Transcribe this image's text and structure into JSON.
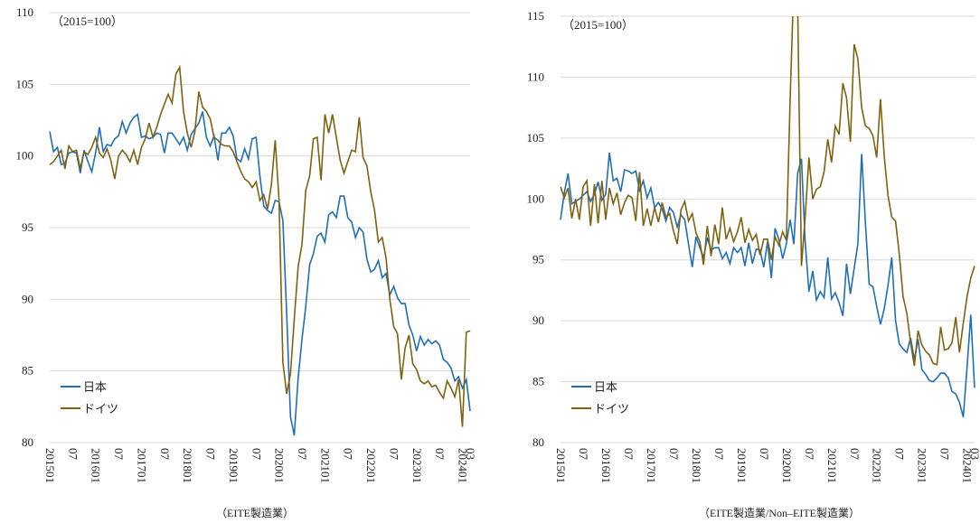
{
  "chart_data": [
    {
      "type": "line",
      "subtitle": "（2015=100）",
      "caption": "（EITE製造業）",
      "categories": [
        "201501",
        null,
        null,
        null,
        null,
        null,
        "07",
        null,
        null,
        null,
        null,
        null,
        "201601",
        null,
        null,
        null,
        null,
        null,
        "07",
        null,
        null,
        null,
        null,
        null,
        "201701",
        null,
        null,
        null,
        null,
        null,
        "07",
        null,
        null,
        null,
        null,
        null,
        "201801",
        null,
        null,
        null,
        null,
        null,
        "07",
        null,
        null,
        null,
        null,
        null,
        "201901",
        null,
        null,
        null,
        null,
        null,
        "07",
        null,
        null,
        null,
        null,
        null,
        "202001",
        null,
        null,
        null,
        null,
        null,
        "07",
        null,
        null,
        null,
        null,
        null,
        "202101",
        null,
        null,
        null,
        null,
        null,
        "07",
        null,
        null,
        null,
        null,
        null,
        "202201",
        null,
        null,
        null,
        null,
        null,
        "07",
        null,
        null,
        null,
        null,
        null,
        "202301",
        null,
        null,
        null,
        null,
        null,
        "07",
        null,
        null,
        null,
        null,
        null,
        "202401",
        null,
        "03"
      ],
      "ylim": [
        80,
        110
      ],
      "yticks": [
        80,
        85,
        90,
        95,
        100,
        105,
        110
      ],
      "grid": true,
      "legend": "lower left",
      "series": [
        {
          "name": "日本",
          "color": "#1f6fb8",
          "values": [
            101.7,
            100.3,
            100.6,
            99.4,
            99.5,
            100.2,
            100.3,
            100.2,
            98.8,
            100.4,
            99.6,
            98.9,
            100.2,
            102,
            100.3,
            100.8,
            100.7,
            101.2,
            101.4,
            102.4,
            101.6,
            102.3,
            102.7,
            102.9,
            101.3,
            101.4,
            101.2,
            101.3,
            101.6,
            101.5,
            100.2,
            101.6,
            101.6,
            101.2,
            100.8,
            101.3,
            100.4,
            101.5,
            101.9,
            102.3,
            103.1,
            101.3,
            100.7,
            101.4,
            99.7,
            101.6,
            101.6,
            102,
            101.4,
            99.8,
            99.6,
            100.5,
            99.8,
            101.2,
            101.3,
            98.6,
            96.5,
            96.2,
            96,
            96.9,
            96.8,
            95.5,
            89,
            81.8,
            80.5,
            84.5,
            87.2,
            89.5,
            92.4,
            93.2,
            94.4,
            94.6,
            94,
            95.9,
            96.1,
            95.7,
            97.2,
            97.2,
            95.7,
            95.4,
            94.3,
            95,
            94.7,
            92.8,
            91.9,
            92.1,
            92.7,
            91.5,
            91.8,
            90.3,
            90.9,
            90.1,
            89.7,
            89.7,
            88.2,
            87.5,
            86.4,
            87.4,
            86.8,
            87.2,
            86.9,
            87.1,
            86.8,
            85.8,
            85.6,
            85.2,
            84.3,
            84.6,
            83.8,
            84.4,
            82.2
          ]
        },
        {
          "name": "ドイツ",
          "color": "#7f6210",
          "values": [
            99.4,
            99.6,
            100,
            100.4,
            99.1,
            100.7,
            100.3,
            100.4,
            99.1,
            100.3,
            100.1,
            100.6,
            101.3,
            100.2,
            99.9,
            100.5,
            99.7,
            98.4,
            100,
            100.4,
            100.1,
            99.6,
            100.4,
            99.4,
            100.6,
            101.2,
            102.3,
            101.3,
            102,
            102.9,
            103.6,
            104.3,
            103.7,
            105.7,
            106.2,
            103.1,
            101.6,
            100.6,
            101.7,
            104.5,
            103.4,
            103.1,
            102.6,
            101.3,
            101.1,
            100.8,
            100.7,
            100.7,
            100.3,
            99.6,
            98.9,
            98.4,
            98.2,
            97.8,
            98.2,
            96.9,
            97.3,
            96.3,
            98,
            101.1,
            97,
            85.6,
            83.4,
            84.8,
            88.6,
            92.3,
            93.8,
            97.6,
            98.6,
            101.2,
            101.3,
            98.3,
            102.9,
            101.6,
            102.9,
            101.3,
            99.7,
            98.8,
            99.6,
            100.4,
            100.3,
            102.7,
            99.9,
            99.3,
            97.5,
            96.2,
            94,
            94.3,
            92.9,
            90,
            88.1,
            87.6,
            84.4,
            86.6,
            87.5,
            85.5,
            85.1,
            84.3,
            84.1,
            84.3,
            83.9,
            84,
            83.5,
            83.1,
            84.3,
            83.8,
            83.2,
            84.4,
            81.1,
            87.7,
            87.8
          ]
        }
      ]
    },
    {
      "type": "line",
      "subtitle": "（2015=100）",
      "caption": "（EITE製造業/Non–EITE製造業）",
      "categories": [
        "201501",
        null,
        null,
        null,
        null,
        null,
        "07",
        null,
        null,
        null,
        null,
        null,
        "201601",
        null,
        null,
        null,
        null,
        null,
        "07",
        null,
        null,
        null,
        null,
        null,
        "201701",
        null,
        null,
        null,
        null,
        null,
        "07",
        null,
        null,
        null,
        null,
        null,
        "201801",
        null,
        null,
        null,
        null,
        null,
        "07",
        null,
        null,
        null,
        null,
        null,
        "201901",
        null,
        null,
        null,
        null,
        null,
        "07",
        null,
        null,
        null,
        null,
        null,
        "202001",
        null,
        null,
        null,
        null,
        null,
        "07",
        null,
        null,
        null,
        null,
        null,
        "202101",
        null,
        null,
        null,
        null,
        null,
        "07",
        null,
        null,
        null,
        null,
        null,
        "202201",
        null,
        null,
        null,
        null,
        null,
        "07",
        null,
        null,
        null,
        null,
        null,
        "202301",
        null,
        null,
        null,
        null,
        null,
        "07",
        null,
        null,
        null,
        null,
        null,
        "202401",
        null,
        "03"
      ],
      "ylim": [
        80,
        115
      ],
      "yticks": [
        80,
        85,
        90,
        95,
        100,
        105,
        110,
        115
      ],
      "grid": true,
      "legend": "lower left",
      "series": [
        {
          "name": "日本",
          "color": "#1f6fb8",
          "values": [
            98.3,
            100.5,
            102.1,
            99.6,
            99.8,
            100,
            100.3,
            100.6,
            99.8,
            100.4,
            101.4,
            99.9,
            100.4,
            103.8,
            101.5,
            101.7,
            100.6,
            102.4,
            102.3,
            102.1,
            102.3,
            100.7,
            101.5,
            100.1,
            100.9,
            99.3,
            99.7,
            99.2,
            98.2,
            99.3,
            98.9,
            97.7,
            98.7,
            98.3,
            96.3,
            94.4,
            96.9,
            96,
            95.2,
            96.8,
            95.8,
            96,
            96,
            95.1,
            95.6,
            94.7,
            96,
            95.6,
            96,
            94.5,
            96.4,
            94.7,
            95.9,
            95.8,
            94.4,
            96.5,
            93.5,
            97.6,
            96.7,
            95.1,
            96.3,
            98.3,
            96.3,
            102.1,
            103.3,
            96.5,
            92.4,
            94.1,
            91.7,
            92.4,
            91.9,
            95.2,
            91.8,
            92.3,
            91.5,
            90.4,
            94.7,
            92.2,
            94.3,
            96.3,
            103.7,
            98,
            93,
            92.8,
            91.2,
            89.7,
            91,
            92.9,
            95.2,
            90,
            88.1,
            87.7,
            87.4,
            88.6,
            86.8,
            88.5,
            86,
            85.6,
            85.1,
            85,
            85.3,
            85.7,
            85.7,
            85.3,
            84.2,
            84,
            83.3,
            82.1,
            86.2,
            90.5,
            84.5
          ]
        },
        {
          "name": "ドイツ",
          "color": "#7f6210",
          "values": [
            101,
            100.1,
            100.9,
            98.4,
            100,
            98.3,
            101,
            101.5,
            97.8,
            101.2,
            98,
            101.5,
            98.3,
            100.9,
            99.6,
            100.5,
            98.7,
            99.7,
            100.3,
            100.1,
            98.2,
            102.2,
            97.8,
            99.2,
            97.8,
            99.3,
            98.1,
            99.7,
            98.5,
            98.8,
            97.4,
            96.3,
            99.1,
            99.8,
            98.2,
            98.8,
            97.2,
            96.5,
            94.6,
            97.8,
            95.3,
            97.9,
            96.3,
            99.3,
            96.7,
            97.6,
            96.5,
            97.3,
            98.5,
            96.4,
            97.5,
            96.6,
            97.1,
            95.4,
            96.7,
            96.7,
            95,
            96.9,
            96.2,
            97.3,
            96.6,
            108.2,
            118,
            116,
            94.5,
            98.5,
            103.4,
            100,
            100.8,
            101,
            102.2,
            104.9,
            103,
            106,
            105.3,
            109.5,
            108.3,
            104.7,
            112.7,
            111.5,
            107.5,
            106,
            105.8,
            105.2,
            103.4,
            108.2,
            103.5,
            100.3,
            98.5,
            98.2,
            95.5,
            92,
            90.6,
            88.2,
            86.3,
            89.2,
            88,
            87.5,
            87.2,
            86.5,
            86.4,
            89.5,
            87.6,
            87.7,
            88.2,
            90.3,
            87.4,
            89.8,
            92,
            93.5,
            94.5
          ]
        }
      ]
    }
  ]
}
